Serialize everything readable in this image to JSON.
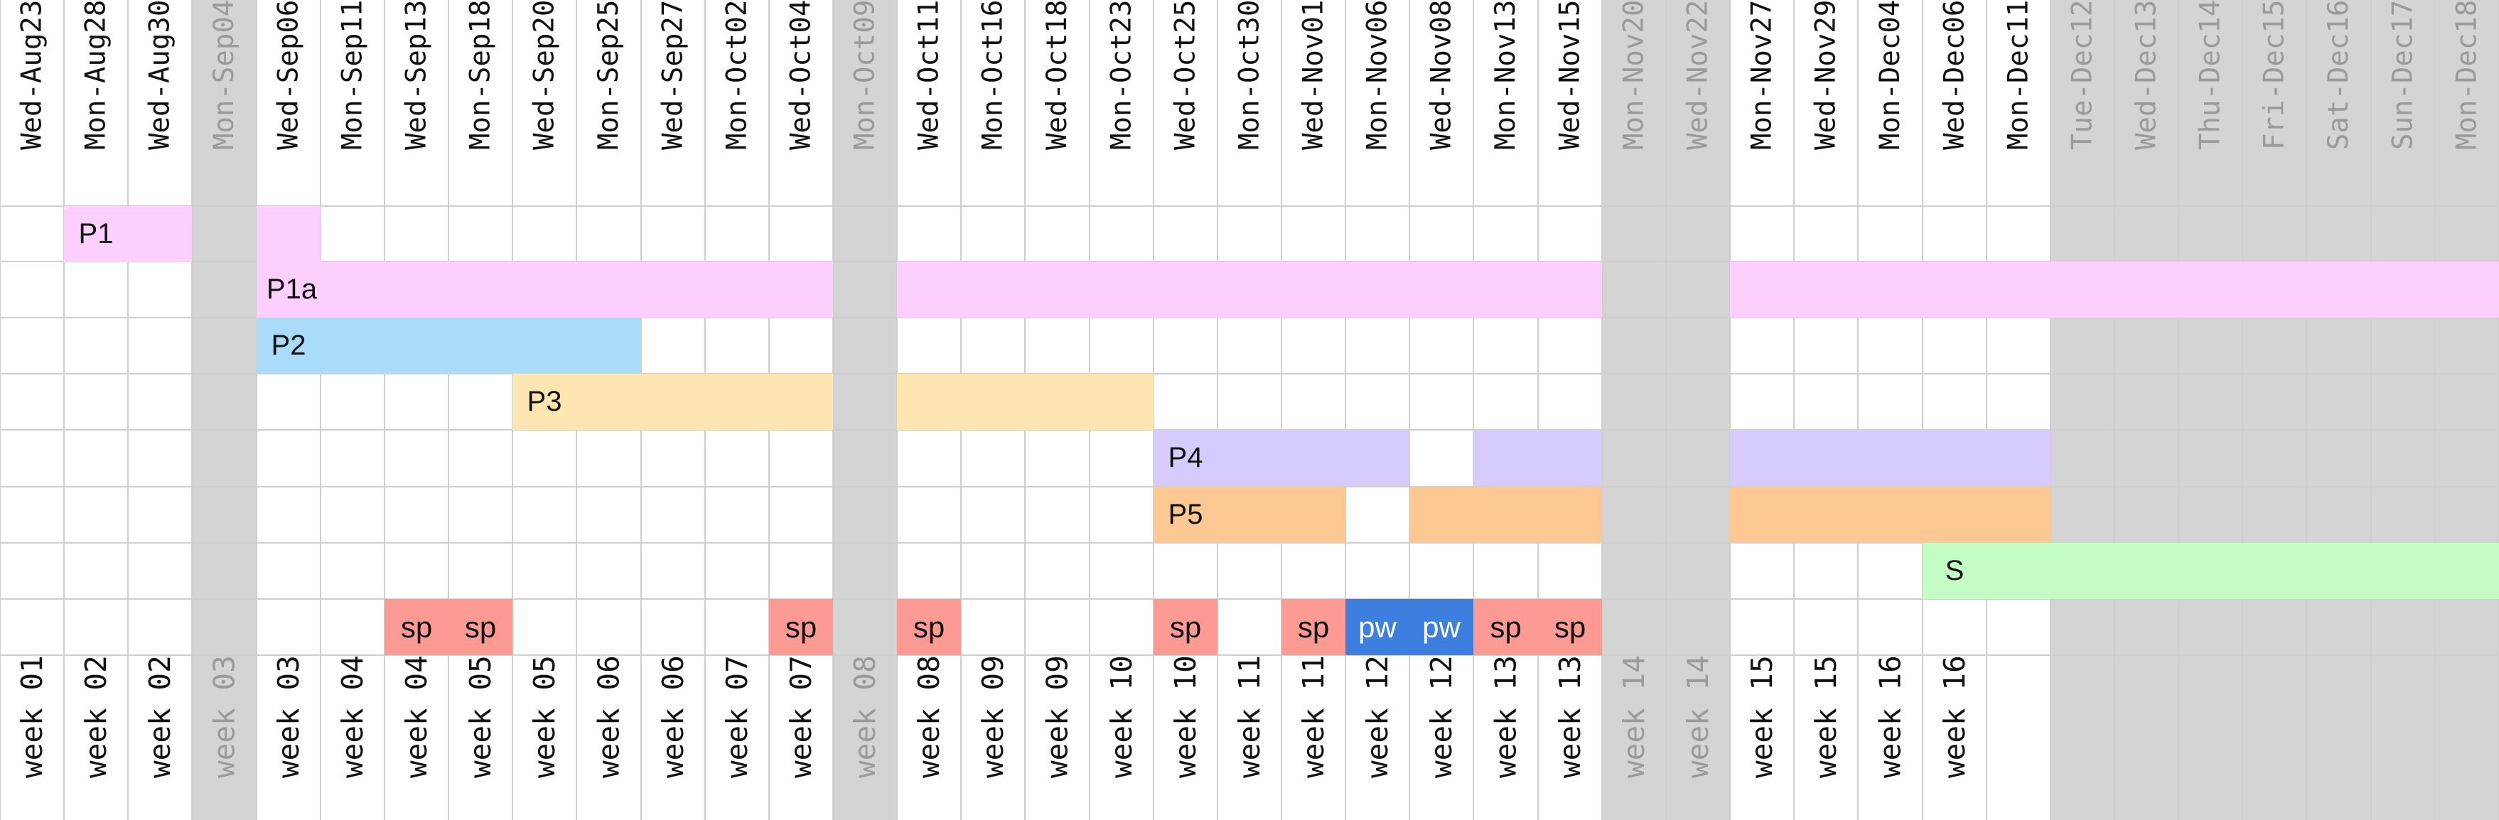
{
  "columns": [
    {
      "date": "Wed-Aug23",
      "week": "week 01"
    },
    {
      "date": "Mon-Aug28",
      "week": "week 02"
    },
    {
      "date": "Wed-Aug30",
      "week": "week 02"
    },
    {
      "date": "Mon-Sep04",
      "week": "week 03",
      "off": true
    },
    {
      "date": "Wed-Sep06",
      "week": "week 03"
    },
    {
      "date": "Mon-Sep11",
      "week": "week 04"
    },
    {
      "date": "Wed-Sep13",
      "week": "week 04"
    },
    {
      "date": "Mon-Sep18",
      "week": "week 05"
    },
    {
      "date": "Wed-Sep20",
      "week": "week 05"
    },
    {
      "date": "Mon-Sep25",
      "week": "week 06"
    },
    {
      "date": "Wed-Sep27",
      "week": "week 06"
    },
    {
      "date": "Mon-Oct02",
      "week": "week 07"
    },
    {
      "date": "Wed-Oct04",
      "week": "week 07"
    },
    {
      "date": "Mon-Oct09",
      "week": "week 08",
      "off": true
    },
    {
      "date": "Wed-Oct11",
      "week": "week 08"
    },
    {
      "date": "Mon-Oct16",
      "week": "week 09"
    },
    {
      "date": "Wed-Oct18",
      "week": "week 09"
    },
    {
      "date": "Mon-Oct23",
      "week": "week 10"
    },
    {
      "date": "Wed-Oct25",
      "week": "week 10"
    },
    {
      "date": "Mon-Oct30",
      "week": "week 11"
    },
    {
      "date": "Wed-Nov01",
      "week": "week 11"
    },
    {
      "date": "Mon-Nov06",
      "week": "week 12"
    },
    {
      "date": "Wed-Nov08",
      "week": "week 12"
    },
    {
      "date": "Mon-Nov13",
      "week": "week 13"
    },
    {
      "date": "Wed-Nov15",
      "week": "week 13"
    },
    {
      "date": "Mon-Nov20",
      "week": "week 14",
      "off": true
    },
    {
      "date": "Wed-Nov22",
      "week": "week 14",
      "off": true
    },
    {
      "date": "Mon-Nov27",
      "week": "week 15"
    },
    {
      "date": "Wed-Nov29",
      "week": "week 15"
    },
    {
      "date": "Mon-Dec04",
      "week": "week 16"
    },
    {
      "date": "Wed-Dec06",
      "week": "week 16"
    },
    {
      "date": "Mon-Dec11",
      "week": ""
    },
    {
      "date": "Tue-Dec12",
      "week": "",
      "off": true
    },
    {
      "date": "Wed-Dec13",
      "week": "",
      "off": true
    },
    {
      "date": "Thu-Dec14",
      "week": "",
      "off": true
    },
    {
      "date": "Fri-Dec15",
      "week": "",
      "off": true
    },
    {
      "date": "Sat-Dec16",
      "week": "",
      "off": true
    },
    {
      "date": "Sun-Dec17",
      "week": "",
      "off": true
    },
    {
      "date": "Mon-Dec18",
      "week": "",
      "off": true
    }
  ],
  "rows": [
    {
      "name": "P1",
      "color": "#fccffc",
      "label": "P1",
      "cells": [
        1,
        2,
        4
      ]
    },
    {
      "name": "P1a",
      "color": "#fccffc",
      "label": "P1a",
      "cells": [
        4,
        5,
        6,
        7,
        8,
        9,
        10,
        11,
        12,
        14,
        15,
        16,
        17,
        18,
        19,
        20,
        21,
        22,
        23,
        24,
        27,
        28,
        29,
        30,
        31,
        32,
        33,
        34,
        35,
        36,
        37,
        38
      ]
    },
    {
      "name": "P2",
      "color": "#a9dbfa",
      "label": "P2",
      "cells": [
        4,
        5,
        6,
        7,
        8,
        9
      ]
    },
    {
      "name": "P3",
      "color": "#fde6b2",
      "label": "P3",
      "cells": [
        8,
        9,
        10,
        11,
        12,
        14,
        15,
        16,
        17
      ]
    },
    {
      "name": "P4",
      "color": "#d7cbfe",
      "label": "P4",
      "cells": [
        18,
        19,
        20,
        21,
        23,
        24,
        27,
        28,
        29,
        30,
        31
      ]
    },
    {
      "name": "P5",
      "color": "#fec893",
      "label": "P5",
      "cells": [
        18,
        19,
        20,
        22,
        23,
        24,
        27,
        28,
        29,
        30,
        31
      ]
    },
    {
      "name": "S",
      "color": "#c3fdc4",
      "label": "S",
      "cells": [
        30,
        31,
        32,
        33,
        34,
        35,
        36,
        37,
        38
      ]
    },
    {
      "name": "sp-pw",
      "cells": []
    }
  ],
  "sp_row": [
    {
      "col": 6,
      "text": "sp",
      "kind": "sp"
    },
    {
      "col": 7,
      "text": "sp",
      "kind": "sp"
    },
    {
      "col": 12,
      "text": "sp",
      "kind": "sp"
    },
    {
      "col": 14,
      "text": "sp",
      "kind": "sp"
    },
    {
      "col": 18,
      "text": "sp",
      "kind": "sp"
    },
    {
      "col": 20,
      "text": "sp",
      "kind": "sp"
    },
    {
      "col": 21,
      "text": "pw",
      "kind": "pw"
    },
    {
      "col": 22,
      "text": "pw",
      "kind": "pw"
    },
    {
      "col": 23,
      "text": "sp",
      "kind": "sp"
    },
    {
      "col": 24,
      "text": "sp",
      "kind": "sp"
    }
  ],
  "colors": {
    "off_column": "#d4d4d4",
    "grid": "#cfcfcf",
    "sp": "#fc9a93",
    "pw": "#3d7fde",
    "off_text": "#9a9a9a"
  }
}
